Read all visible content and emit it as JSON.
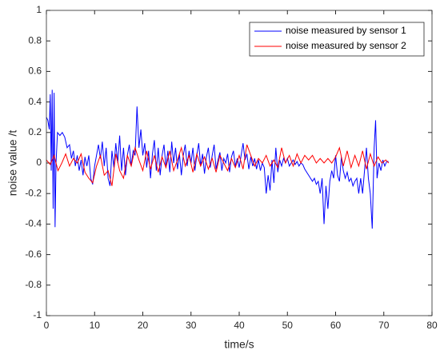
{
  "chart_data": {
    "type": "line",
    "xlabel": "time/s",
    "ylabel": "noise value /t",
    "xlim": [
      0,
      80
    ],
    "xticks": [
      0,
      10,
      20,
      30,
      40,
      50,
      60,
      70,
      80
    ],
    "ylim": [
      -1,
      1
    ],
    "yticks": [
      -1,
      -0.8,
      -0.6,
      -0.4,
      -0.2,
      0,
      0.2,
      0.4,
      0.6,
      0.8,
      1
    ],
    "grid": false,
    "legend": "northeast",
    "series": [
      {
        "name": "noise measured by sensor 1",
        "color": "#0000ff",
        "x": [
          0,
          0.3,
          0.6,
          0.8,
          1.0,
          1.2,
          1.4,
          1.6,
          1.8,
          2.0,
          2.3,
          2.8,
          3.3,
          3.8,
          4.3,
          4.8,
          5.2,
          5.6,
          6.0,
          6.4,
          6.8,
          7.2,
          7.6,
          8.0,
          8.4,
          8.8,
          9.2,
          9.6,
          10.0,
          10.4,
          10.8,
          11.2,
          11.6,
          12.0,
          12.4,
          12.8,
          13.2,
          13.6,
          14.0,
          14.4,
          14.8,
          15.2,
          15.6,
          16.0,
          16.4,
          16.8,
          17.2,
          17.6,
          18.0,
          18.4,
          18.8,
          19.2,
          19.6,
          20.0,
          20.4,
          20.8,
          21.2,
          21.6,
          22.0,
          22.4,
          22.8,
          23.2,
          23.6,
          24.0,
          24.4,
          24.8,
          25.2,
          25.6,
          26.0,
          26.4,
          26.8,
          27.2,
          27.6,
          28.0,
          28.4,
          28.8,
          29.2,
          29.6,
          30.0,
          30.4,
          30.8,
          31.2,
          31.6,
          32.0,
          32.4,
          32.8,
          33.2,
          33.6,
          34.0,
          34.4,
          34.8,
          35.2,
          35.6,
          36.0,
          36.4,
          36.8,
          37.2,
          37.6,
          38.0,
          38.4,
          38.8,
          39.2,
          39.6,
          40.0,
          40.4,
          40.8,
          41.2,
          41.6,
          42.0,
          42.4,
          42.8,
          43.2,
          43.6,
          44.0,
          44.4,
          44.8,
          45.2,
          45.6,
          46.0,
          46.4,
          46.8,
          47.2,
          47.6,
          48.0,
          48.4,
          48.8,
          49.2,
          49.6,
          50.0,
          50.4,
          50.8,
          51.2,
          51.6,
          52.0,
          52.4,
          52.8,
          53.2,
          53.6,
          54.0,
          54.4,
          54.8,
          55.2,
          55.6,
          56.0,
          56.4,
          56.8,
          57.2,
          57.6,
          58.0,
          58.4,
          58.8,
          59.2,
          59.6,
          60.0,
          60.4,
          60.8,
          61.2,
          61.6,
          62.0,
          62.4,
          62.8,
          63.2,
          63.6,
          64.0,
          64.4,
          64.8,
          65.2,
          65.6,
          66.0,
          66.4,
          66.8,
          67.2,
          67.6,
          68.0,
          68.3,
          68.6,
          69.0,
          69.4,
          69.8,
          70.2,
          70.6,
          71.0
        ],
        "values": [
          0.3,
          0.28,
          0.22,
          0.45,
          -0.05,
          0.48,
          -0.3,
          0.46,
          -0.42,
          0.0,
          0.2,
          0.18,
          0.2,
          0.17,
          0.1,
          0.12,
          0.03,
          0.08,
          -0.02,
          0.05,
          -0.05,
          0.02,
          -0.08,
          0.04,
          -0.02,
          0.05,
          -0.1,
          -0.14,
          -0.02,
          0.05,
          0.12,
          0.03,
          0.14,
          -0.02,
          0.1,
          -0.1,
          -0.15,
          0.08,
          -0.03,
          0.13,
          0.0,
          0.18,
          -0.05,
          0.1,
          -0.08,
          0.05,
          0.12,
          -0.02,
          0.08,
          0.05,
          0.37,
          0.1,
          0.22,
          0.05,
          0.13,
          -0.03,
          0.08,
          -0.1,
          0.06,
          0.15,
          -0.05,
          0.1,
          -0.08,
          0.05,
          0.12,
          -0.03,
          0.08,
          -0.06,
          0.14,
          0.0,
          0.1,
          -0.04,
          0.06,
          -0.08,
          0.05,
          0.12,
          -0.02,
          0.08,
          0.0,
          0.1,
          -0.05,
          0.05,
          0.13,
          -0.02,
          0.06,
          -0.07,
          0.04,
          0.1,
          -0.03,
          0.05,
          0.12,
          -0.04,
          0.02,
          0.07,
          -0.05,
          0.03,
          0.0,
          0.06,
          -0.06,
          0.04,
          0.08,
          -0.02,
          0.03,
          -0.03,
          0.05,
          0.13,
          0.02,
          0.06,
          -0.04,
          0.04,
          -0.02,
          0.03,
          -0.04,
          0.02,
          -0.05,
          0.0,
          -0.03,
          -0.2,
          -0.08,
          -0.18,
          0.02,
          -0.13,
          0.1,
          -0.06,
          0.02,
          -0.02,
          0.03,
          0.0,
          0.03,
          -0.02,
          0.0,
          0.02,
          -0.01,
          0.01,
          -0.02,
          0.0,
          -0.01,
          -0.04,
          -0.06,
          -0.08,
          -0.1,
          -0.12,
          -0.1,
          -0.14,
          -0.12,
          -0.2,
          -0.1,
          -0.4,
          -0.15,
          -0.3,
          -0.12,
          -0.05,
          -0.1,
          0.05,
          -0.08,
          -0.12,
          0.04,
          -0.05,
          -0.1,
          -0.06,
          -0.12,
          -0.1,
          -0.15,
          -0.12,
          -0.1,
          -0.2,
          -0.1,
          -0.2,
          -0.05,
          0.1,
          -0.1,
          -0.2,
          -0.43,
          0.1,
          0.28,
          -0.1,
          0.0,
          -0.05,
          0.02,
          -0.02,
          0.01,
          0.01
        ]
      },
      {
        "name": "noise measured by sensor 2",
        "color": "#ff0000",
        "x": [
          0,
          0.8,
          1.6,
          2.4,
          3.2,
          4.0,
          4.8,
          5.6,
          6.4,
          7.2,
          8.0,
          8.8,
          9.6,
          10.4,
          11.2,
          12.0,
          12.8,
          13.6,
          14.4,
          15.2,
          16.0,
          16.8,
          17.6,
          18.4,
          19.2,
          20.0,
          20.8,
          21.6,
          22.4,
          23.2,
          24.0,
          24.8,
          25.6,
          26.4,
          27.2,
          28.0,
          28.8,
          29.6,
          30.4,
          31.2,
          32.0,
          32.8,
          33.6,
          34.4,
          35.2,
          36.0,
          36.8,
          37.6,
          38.4,
          39.2,
          40.0,
          40.8,
          41.6,
          42.4,
          43.2,
          44.0,
          44.8,
          45.6,
          46.4,
          47.2,
          48.0,
          48.8,
          49.6,
          50.4,
          51.2,
          52.0,
          52.8,
          53.6,
          54.4,
          55.2,
          56.0,
          56.8,
          57.6,
          58.4,
          59.2,
          60.0,
          60.8,
          61.6,
          62.4,
          63.2,
          64.0,
          64.8,
          65.6,
          66.4,
          67.2,
          68.0,
          68.8,
          69.6,
          70.4,
          71.0
        ],
        "values": [
          0.02,
          -0.01,
          0.05,
          -0.05,
          0.0,
          0.06,
          -0.02,
          0.03,
          0.0,
          0.06,
          -0.06,
          -0.1,
          -0.13,
          -0.02,
          0.05,
          -0.08,
          -0.05,
          -0.15,
          0.06,
          -0.05,
          -0.1,
          0.05,
          -0.02,
          0.1,
          0.02,
          -0.05,
          0.08,
          -0.04,
          0.05,
          -0.06,
          0.04,
          -0.03,
          0.08,
          -0.05,
          0.02,
          0.1,
          -0.02,
          0.05,
          -0.06,
          0.06,
          -0.02,
          0.04,
          -0.04,
          0.03,
          -0.06,
          0.05,
          0.0,
          -0.05,
          0.03,
          -0.03,
          0.05,
          -0.04,
          0.12,
          0.05,
          -0.02,
          0.03,
          0.0,
          0.05,
          -0.02,
          0.02,
          -0.03,
          0.1,
          0.0,
          0.05,
          -0.02,
          0.06,
          0.0,
          0.05,
          0.02,
          0.05,
          0.0,
          0.03,
          0.0,
          0.03,
          0.0,
          0.04,
          0.1,
          -0.02,
          0.08,
          -0.03,
          0.05,
          -0.02,
          0.08,
          -0.04,
          0.06,
          -0.02,
          0.04,
          0.0,
          0.02,
          0.0
        ]
      }
    ]
  }
}
